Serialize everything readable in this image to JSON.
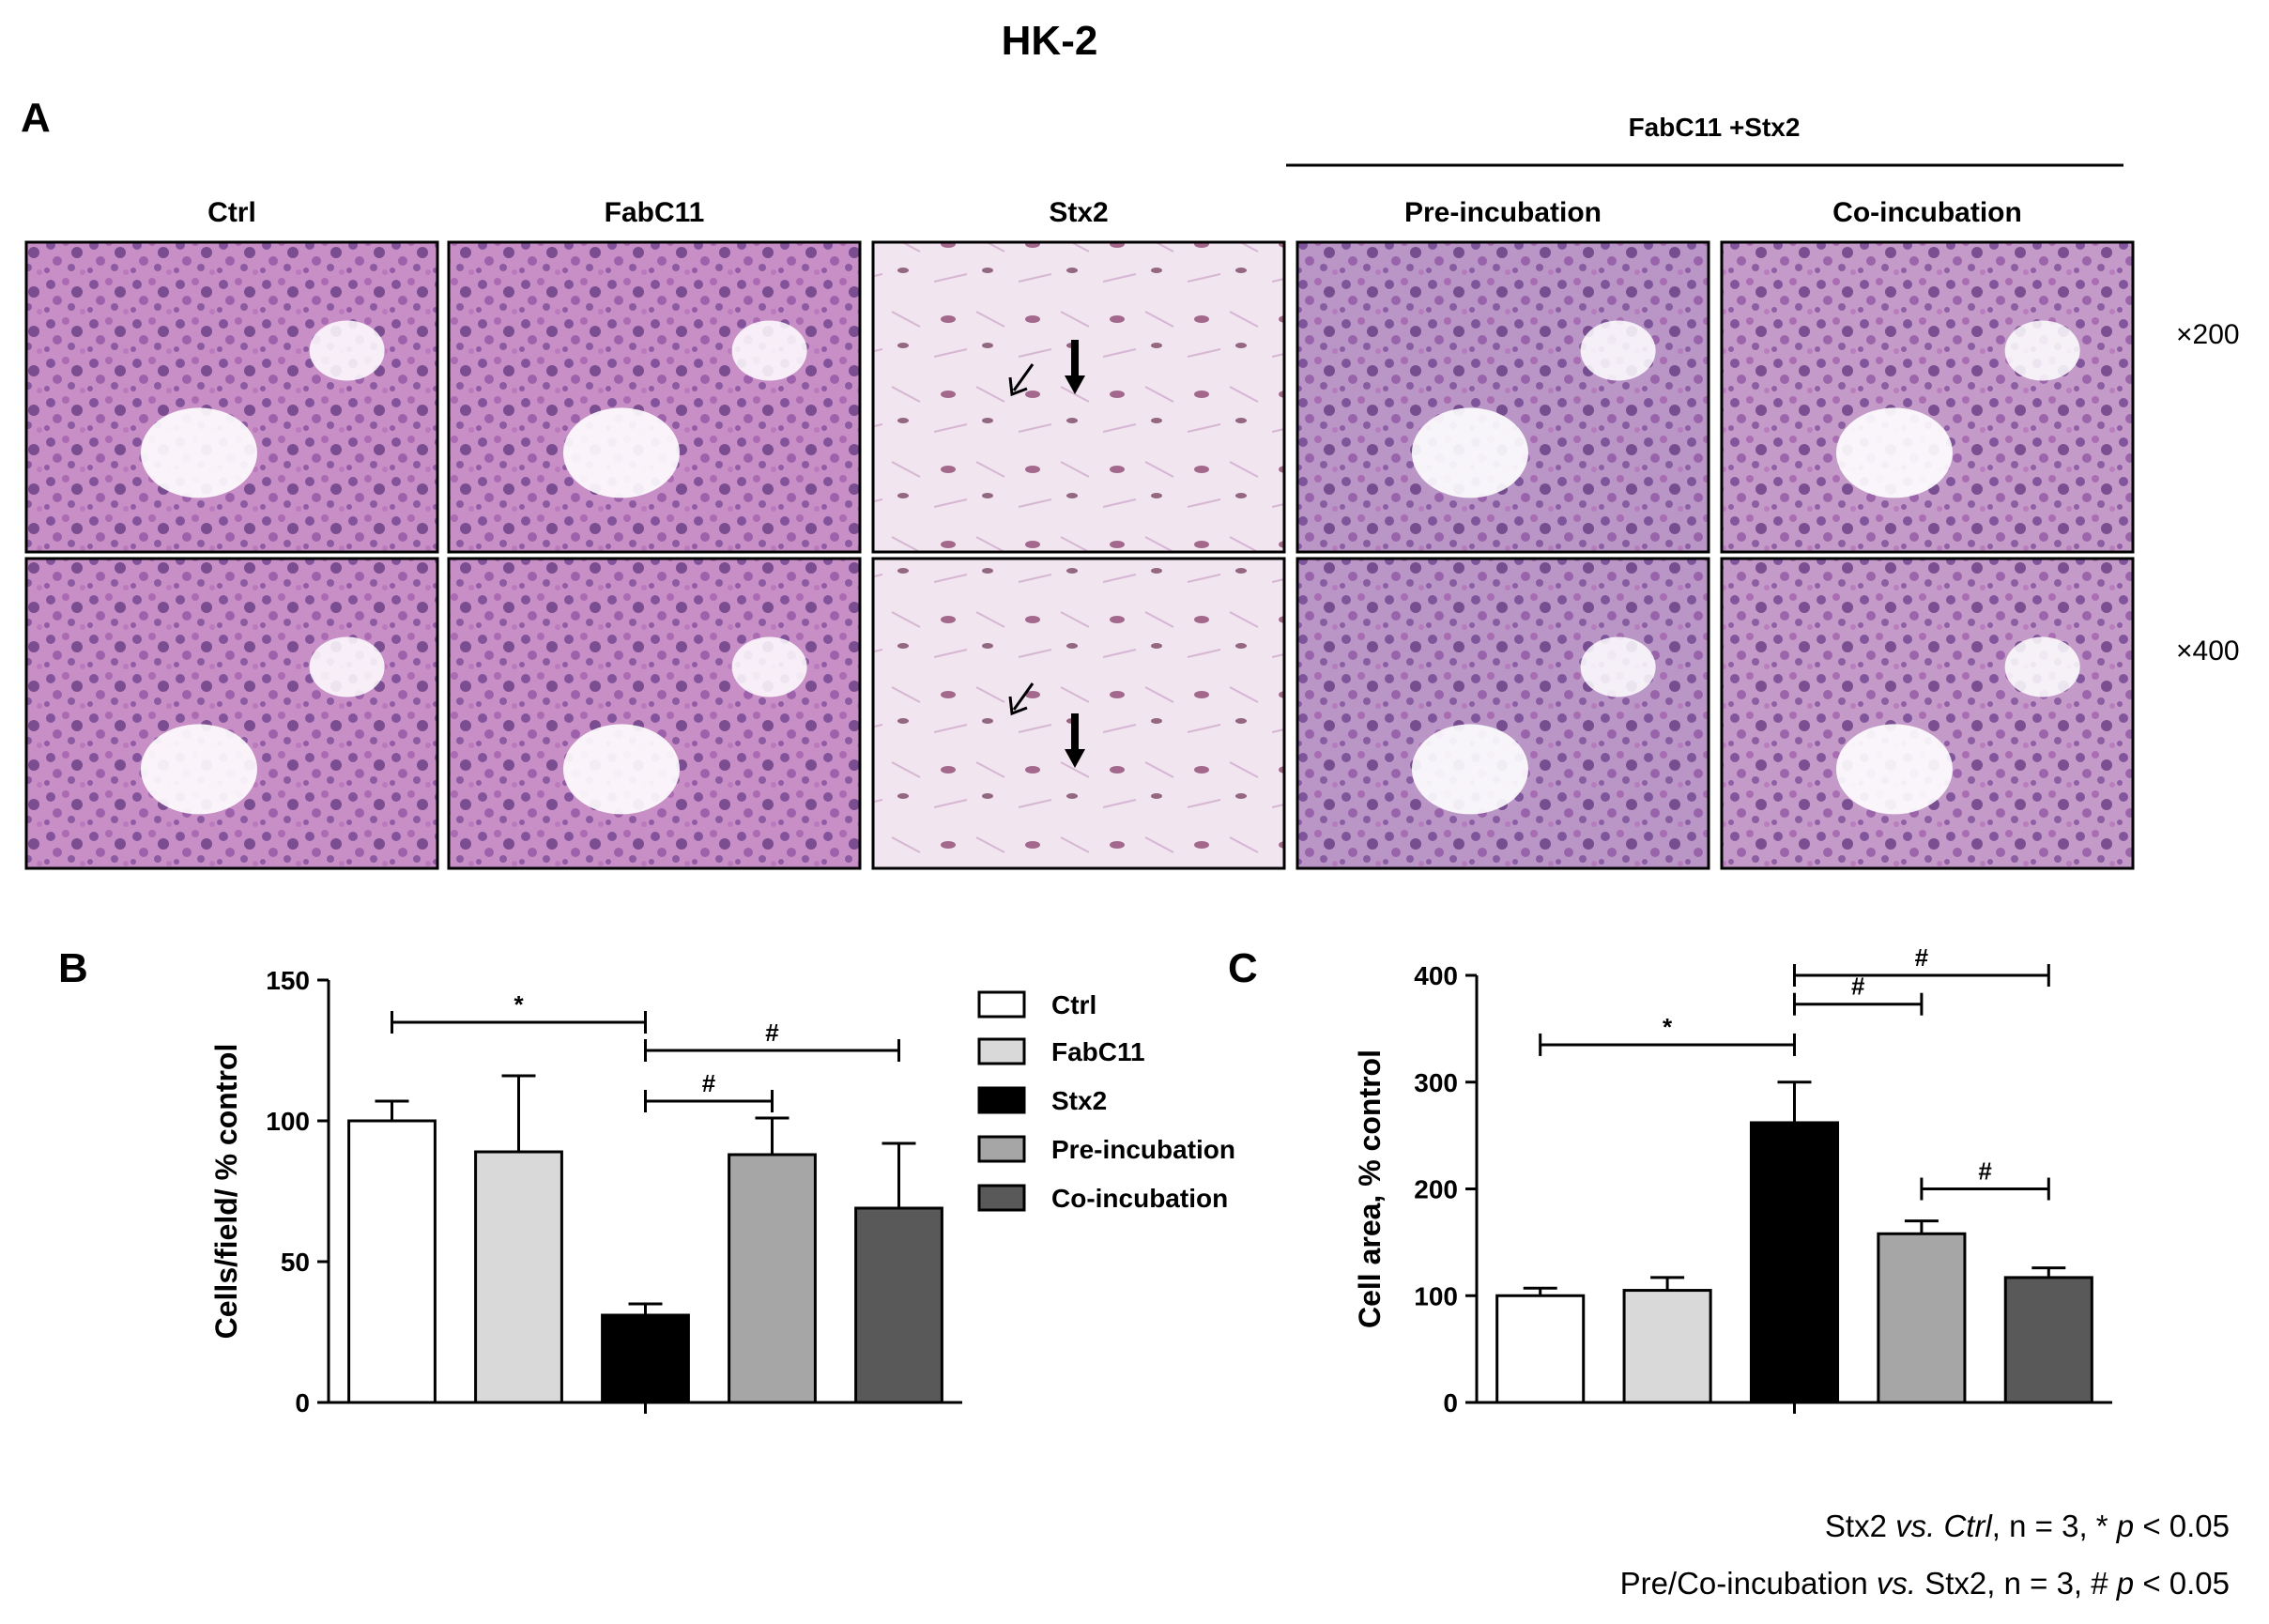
{
  "figure_title": "HK-2",
  "panel_a": {
    "label": "A",
    "group_label": "FabC11 +Stx2",
    "column_labels": [
      "Ctrl",
      "FabC11",
      "Stx2",
      "Pre-incubation",
      "Co-incubation"
    ],
    "row_labels": [
      "×200",
      "×400"
    ],
    "panel_colors": [
      "#c78fc6",
      "#c78fc6",
      "#f1e5f0",
      "#b996c5",
      "#c49ac8"
    ]
  },
  "panel_b": {
    "label": "B"
  },
  "panel_c": {
    "label": "C"
  },
  "legend": {
    "items": [
      {
        "label": "Ctrl",
        "color": "#ffffff"
      },
      {
        "label": "FabC11",
        "color": "#d9d9d9"
      },
      {
        "label": "Stx2",
        "color": "#000000"
      },
      {
        "label": "Pre-incubation",
        "color": "#a6a6a6"
      },
      {
        "label": "Co-incubation",
        "color": "#595959"
      }
    ]
  },
  "chart_data": [
    {
      "type": "bar",
      "panel": "B",
      "categories": [
        "Ctrl",
        "FabC11",
        "Stx2",
        "Pre-incubation",
        "Co-incubation"
      ],
      "values": [
        100,
        89,
        31,
        88,
        69
      ],
      "errors": [
        7,
        27,
        4,
        13,
        23
      ],
      "colors": [
        "#ffffff",
        "#d9d9d9",
        "#000000",
        "#a6a6a6",
        "#595959"
      ],
      "xlabel": "",
      "ylabel": "Cells/field/ % control",
      "ylim": [
        0,
        150
      ],
      "yticks": [
        0,
        50,
        100,
        150
      ],
      "significance": [
        {
          "from": 0,
          "to": 2,
          "symbol": "*",
          "y": 135
        },
        {
          "from": 2,
          "to": 4,
          "symbol": "#",
          "y": 125
        },
        {
          "from": 2,
          "to": 3,
          "symbol": "#",
          "y": 107
        }
      ]
    },
    {
      "type": "bar",
      "panel": "C",
      "categories": [
        "Ctrl",
        "FabC11",
        "Stx2",
        "Pre-incubation",
        "Co-incubation"
      ],
      "values": [
        100,
        105,
        262,
        158,
        117
      ],
      "errors": [
        7,
        12,
        38,
        12,
        9
      ],
      "colors": [
        "#ffffff",
        "#d9d9d9",
        "#000000",
        "#a6a6a6",
        "#595959"
      ],
      "xlabel": "",
      "ylabel": "Cell area, % control",
      "ylim": [
        0,
        400
      ],
      "yticks": [
        0,
        100,
        200,
        300,
        400
      ],
      "significance": [
        {
          "from": 0,
          "to": 2,
          "symbol": "*",
          "y": 335
        },
        {
          "from": 2,
          "to": 4,
          "symbol": "#",
          "y": 400
        },
        {
          "from": 2,
          "to": 3,
          "symbol": "#",
          "y": 373
        },
        {
          "from": 3,
          "to": 4,
          "symbol": "#",
          "y": 200
        }
      ]
    }
  ],
  "footnotes": [
    {
      "a": "Stx2 ",
      "b": "vs. Ctrl",
      "c": ", n = 3, * ",
      "d": "p",
      "e": " < 0.05"
    },
    {
      "a": "Pre/Co-incubation ",
      "b": "vs.",
      "c": " Stx2, n = 3, # ",
      "d": "p",
      "e": " < 0.05"
    }
  ]
}
